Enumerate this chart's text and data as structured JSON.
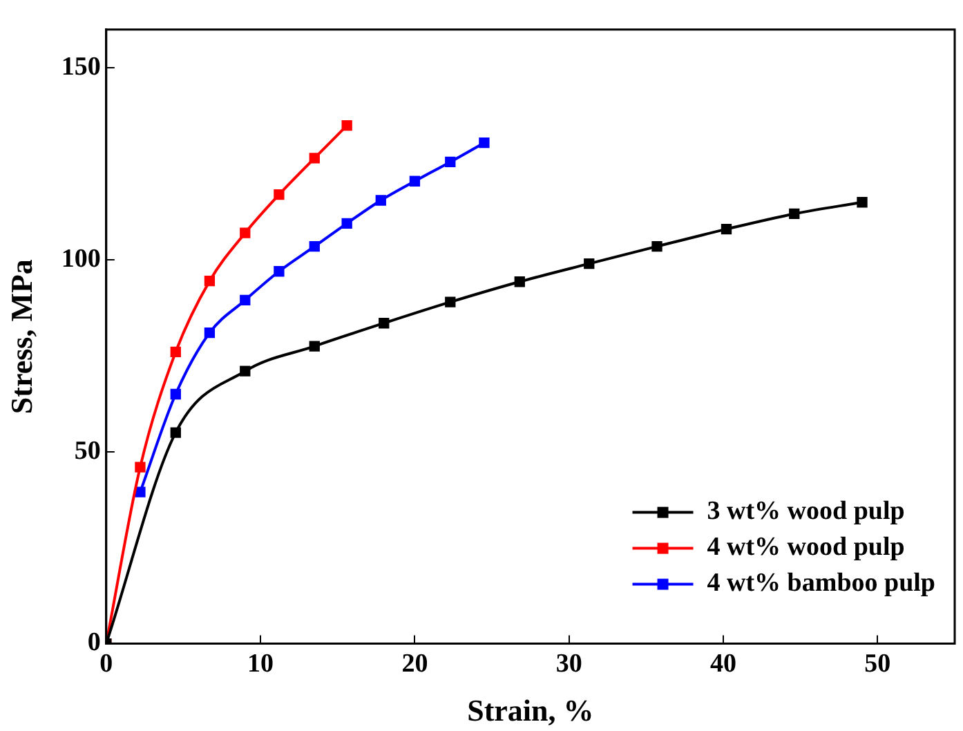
{
  "chart_data": {
    "type": "line",
    "xlabel": "Strain, %",
    "ylabel": "Stress, MPa",
    "xlim": [
      0,
      55
    ],
    "ylim": [
      0,
      160
    ],
    "xticks": [
      0,
      10,
      20,
      30,
      40,
      50
    ],
    "yticks": [
      0,
      50,
      100,
      150
    ],
    "grid": false,
    "legend": "bottom right",
    "marker": "square",
    "line_style": "solid",
    "series": [
      {
        "name": "3 wt% wood pulp",
        "color": "#000000",
        "x": [
          0,
          4.5,
          9,
          13.5,
          18,
          22.3,
          26.8,
          31.3,
          35.7,
          40.2,
          44.6,
          49
        ],
        "values": [
          0,
          55,
          71,
          77.5,
          83.5,
          89,
          94.3,
          99,
          103.5,
          108,
          112,
          115
        ]
      },
      {
        "name": "4 wt% wood pulp",
        "color": "#ff0000",
        "x": [
          0,
          2.2,
          4.5,
          6.7,
          9,
          11.2,
          13.5,
          15.6
        ],
        "values": [
          0,
          46,
          76,
          94.5,
          107,
          117,
          126.5,
          135
        ]
      },
      {
        "name": "4 wt% bamboo pulp",
        "color": "#0000ff",
        "x": [
          2.2,
          4.5,
          6.7,
          9,
          11.2,
          13.5,
          15.6,
          17.8,
          20,
          22.3,
          24.5
        ],
        "values": [
          39.5,
          65,
          81,
          89.5,
          97,
          103.5,
          109.5,
          115.5,
          120.5,
          125.5,
          130.5
        ]
      }
    ]
  }
}
